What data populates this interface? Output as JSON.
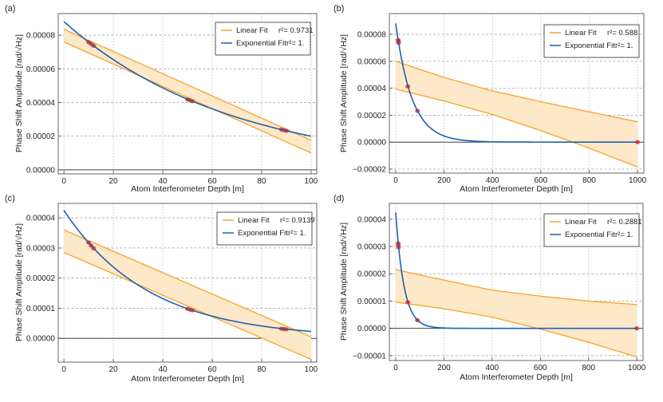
{
  "colors": {
    "linear": "#f5a32a",
    "band": "#fde8c8",
    "exponential": "#1f5fb4",
    "points": "#e8301c",
    "grid": "#b0b0b0"
  },
  "chart_data": [
    {
      "type": "line",
      "panel_label": "(a)",
      "xlabel": "Atom Interferometer Depth [m]",
      "ylabel": "Phase Shift Amplitude [rad/√Hz]",
      "xlim": [
        -2.3,
        102.3
      ],
      "ylim": [
        -2.4e-06,
        9.28e-05
      ],
      "xticks": [
        {
          "v": 0,
          "t": "0"
        },
        {
          "v": 20,
          "t": "20"
        },
        {
          "v": 40,
          "t": "40"
        },
        {
          "v": 60,
          "t": "60"
        },
        {
          "v": 80,
          "t": "80"
        },
        {
          "v": 100,
          "t": "100"
        }
      ],
      "yticks": [
        {
          "v": 0,
          "t": "0.00000"
        },
        {
          "v": 2e-05,
          "t": "0.00002"
        },
        {
          "v": 4e-05,
          "t": "0.00004"
        },
        {
          "v": 6e-05,
          "t": "0.00006"
        },
        {
          "v": 8e-05,
          "t": "0.00008"
        }
      ],
      "grid": true,
      "legend": {
        "placement": "top-right",
        "entries": [
          {
            "name": "Linear Fit",
            "stat": "r²= 0.9731"
          },
          {
            "name": "Exponential Fit",
            "stat": "r²= 1."
          }
        ]
      },
      "points": [
        [
          10,
          7.58e-05
        ],
        [
          11,
          7.48e-05
        ],
        [
          12,
          7.37e-05
        ],
        [
          50,
          4.18e-05
        ],
        [
          51,
          4.13e-05
        ],
        [
          52,
          4.08e-05
        ],
        [
          88,
          2.39e-05
        ],
        [
          89,
          2.36e-05
        ],
        [
          90,
          2.32e-05
        ]
      ],
      "exponential_fit": {
        "amplitude": 8.8e-05,
        "decay_length": 67.5,
        "x_range": [
          0,
          100
        ]
      },
      "linear_band": {
        "upper": [
          [
            0,
            8.35e-05
          ],
          [
            100,
            1.75e-05
          ]
        ],
        "lower": [
          [
            0,
            7.6e-05
          ],
          [
            100,
            1e-05
          ]
        ]
      }
    },
    {
      "type": "line",
      "panel_label": "(b)",
      "xlabel": "Atom Interferometer Depth [m]",
      "ylabel": "Phase Shift Amplitude [rad/√Hz]",
      "xlim": [
        -26.4,
        1026
      ],
      "ylim": [
        -2.3e-05,
        9.54e-05
      ],
      "xticks": [
        {
          "v": 0,
          "t": "0"
        },
        {
          "v": 200,
          "t": "200"
        },
        {
          "v": 400,
          "t": "400"
        },
        {
          "v": 600,
          "t": "600"
        },
        {
          "v": 800,
          "t": "800"
        },
        {
          "v": 1000,
          "t": "1000"
        }
      ],
      "yticks": [
        {
          "v": -2e-05,
          "t": "−0.00002"
        },
        {
          "v": 0,
          "t": "0.00000"
        },
        {
          "v": 2e-05,
          "t": "0.00002"
        },
        {
          "v": 4e-05,
          "t": "0.00004"
        },
        {
          "v": 6e-05,
          "t": "0.00006"
        },
        {
          "v": 8e-05,
          "t": "0.00008"
        }
      ],
      "grid": true,
      "legend": {
        "placement": "top-right",
        "entries": [
          {
            "name": "Linear Fit",
            "stat": "r²= 0.588"
          },
          {
            "name": "Exponential Fit",
            "stat": "r²= 1."
          }
        ]
      },
      "points": [
        [
          10,
          7.58e-05
        ],
        [
          11,
          7.48e-05
        ],
        [
          12,
          7.37e-05
        ],
        [
          50,
          4.13e-05
        ],
        [
          90,
          2.32e-05
        ],
        [
          1000,
          0
        ]
      ],
      "exponential_fit": {
        "amplitude": 8.8e-05,
        "decay_length": 67.5,
        "x_range": [
          0,
          1000
        ]
      },
      "linear_band": {
        "upper": [
          [
            0,
            6e-05
          ],
          [
            200,
            4.8e-05
          ],
          [
            400,
            3.8e-05
          ],
          [
            600,
            3e-05
          ],
          [
            800,
            2.25e-05
          ],
          [
            1000,
            1.5e-05
          ]
        ],
        "lower": [
          [
            0,
            3.93e-05
          ],
          [
            200,
            3.05e-05
          ],
          [
            400,
            2.05e-05
          ],
          [
            600,
            8.5e-06
          ],
          [
            800,
            -4.5e-06
          ],
          [
            1000,
            -1.85e-05
          ]
        ]
      }
    },
    {
      "type": "line",
      "panel_label": "(c)",
      "xlabel": "Atom Interferometer Depth [m]",
      "ylabel": "Phase Shift Amplitude [rad/√Hz]",
      "xlim": [
        -2.3,
        102.3
      ],
      "ylim": [
        -7.9e-06,
        4.48e-05
      ],
      "xticks": [
        {
          "v": 0,
          "t": "0"
        },
        {
          "v": 20,
          "t": "20"
        },
        {
          "v": 40,
          "t": "40"
        },
        {
          "v": 60,
          "t": "60"
        },
        {
          "v": 80,
          "t": "80"
        },
        {
          "v": 100,
          "t": "100"
        }
      ],
      "yticks": [
        {
          "v": 0,
          "t": "0.00000"
        },
        {
          "v": 1e-05,
          "t": "0.00001"
        },
        {
          "v": 2e-05,
          "t": "0.00002"
        },
        {
          "v": 3e-05,
          "t": "0.00003"
        },
        {
          "v": 4e-05,
          "t": "0.00004"
        }
      ],
      "grid": true,
      "legend": {
        "placement": "top-right",
        "entries": [
          {
            "name": "Linear Fit",
            "stat": "r²= 0.9139"
          },
          {
            "name": "Exponential Fit",
            "stat": "r²= 1."
          }
        ]
      },
      "points": [
        [
          10,
          3.18e-05
        ],
        [
          11,
          3.08e-05
        ],
        [
          12,
          2.99e-05
        ],
        [
          50,
          9.8e-06
        ],
        [
          51,
          9.5e-06
        ],
        [
          52,
          9.3e-06
        ],
        [
          88,
          3.2e-06
        ],
        [
          89,
          3.1e-06
        ],
        [
          90,
          3e-06
        ]
      ],
      "exponential_fit": {
        "amplitude": 4.25e-05,
        "decay_length": 34.2,
        "x_range": [
          0,
          100
        ]
      },
      "linear_band": {
        "upper": [
          [
            0,
            3.6e-05
          ],
          [
            100,
            5e-07
          ]
        ],
        "lower": [
          [
            0,
            2.85e-05
          ],
          [
            100,
            -7e-06
          ]
        ]
      }
    },
    {
      "type": "line",
      "panel_label": "(d)",
      "xlabel": "Atom Interferometer Depth [m]",
      "ylabel": "Phase Shift Amplitude [rad/√Hz]",
      "xlim": [
        -26.4,
        1026
      ],
      "ylim": [
        -1.18e-05,
        4.58e-05
      ],
      "xticks": [
        {
          "v": 0,
          "t": "0"
        },
        {
          "v": 200,
          "t": "200"
        },
        {
          "v": 400,
          "t": "400"
        },
        {
          "v": 600,
          "t": "600"
        },
        {
          "v": 800,
          "t": "800"
        },
        {
          "v": 1000,
          "t": "1000"
        }
      ],
      "yticks": [
        {
          "v": -1e-05,
          "t": "−0.00001"
        },
        {
          "v": 0,
          "t": "0.00000"
        },
        {
          "v": 1e-05,
          "t": "0.00001"
        },
        {
          "v": 2e-05,
          "t": "0.00002"
        },
        {
          "v": 3e-05,
          "t": "0.00003"
        },
        {
          "v": 4e-05,
          "t": "0.00004"
        }
      ],
      "grid": true,
      "legend": {
        "placement": "top-right",
        "entries": [
          {
            "name": "Linear Fit",
            "stat": "r²= 0.2881"
          },
          {
            "name": "Exponential Fit",
            "stat": "r²= 1."
          }
        ]
      },
      "points": [
        [
          10,
          3.12e-05
        ],
        [
          11,
          3.05e-05
        ],
        [
          12,
          2.97e-05
        ],
        [
          50,
          9.6e-06
        ],
        [
          90,
          3e-06
        ],
        [
          1000,
          0
        ]
      ],
      "exponential_fit": {
        "amplitude": 4.25e-05,
        "decay_length": 34.2,
        "x_range": [
          0,
          1000
        ]
      },
      "linear_band": {
        "upper": [
          [
            0,
            2.15e-05
          ],
          [
            200,
            1.77e-05
          ],
          [
            400,
            1.4e-05
          ],
          [
            600,
            1.18e-05
          ],
          [
            800,
            1e-05
          ],
          [
            1000,
            8.7e-06
          ]
        ],
        "lower": [
          [
            0,
            9.6e-06
          ],
          [
            200,
            7.2e-06
          ],
          [
            400,
            4.1e-06
          ],
          [
            600,
            -3e-07
          ],
          [
            800,
            -5.1e-06
          ],
          [
            1000,
            -1.05e-05
          ]
        ]
      }
    }
  ]
}
